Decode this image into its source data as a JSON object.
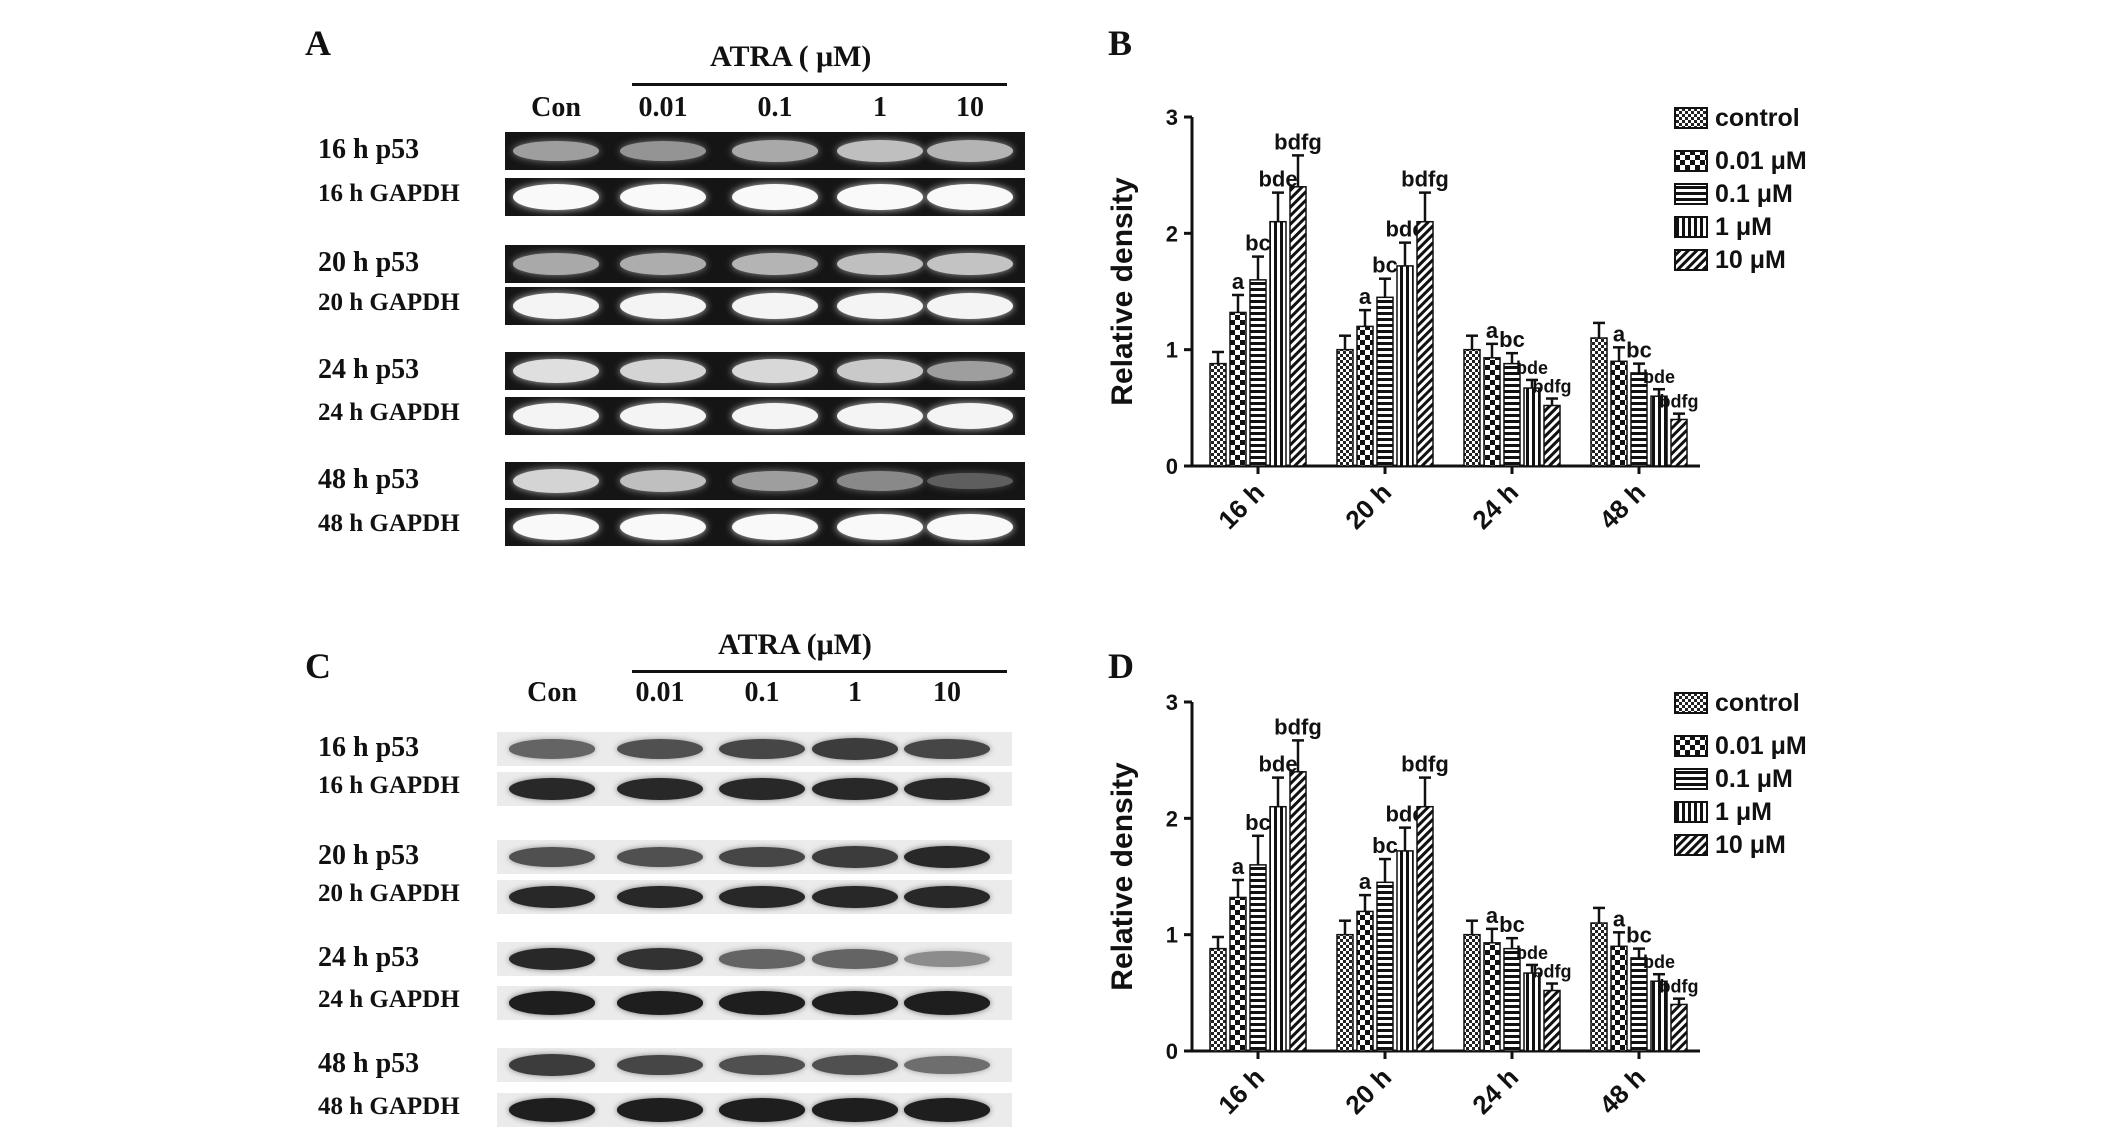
{
  "panels": {
    "A": {
      "letter": "A",
      "header": "ATRA ( μM)",
      "lanes": [
        "Con",
        "0.01",
        "0.1",
        "1",
        "10"
      ],
      "rows": [
        {
          "label": "16 h p53",
          "strip": "dark",
          "intensity": [
            0.55,
            0.5,
            0.6,
            0.7,
            0.65
          ]
        },
        {
          "label": "16 h GAPDH",
          "strip": "dark",
          "intensity": [
            0.97,
            0.97,
            0.97,
            0.97,
            0.97
          ]
        },
        {
          "label": "20 h p53",
          "strip": "dark",
          "intensity": [
            0.6,
            0.62,
            0.65,
            0.7,
            0.72
          ]
        },
        {
          "label": "20 h GAPDH",
          "strip": "dark",
          "intensity": [
            0.95,
            0.95,
            0.95,
            0.95,
            0.95
          ]
        },
        {
          "label": "24 h p53",
          "strip": "dark",
          "intensity": [
            0.85,
            0.8,
            0.82,
            0.75,
            0.55
          ]
        },
        {
          "label": "24 h GAPDH",
          "strip": "dark",
          "intensity": [
            0.95,
            0.95,
            0.95,
            0.95,
            0.95
          ]
        },
        {
          "label": "48 h p53",
          "strip": "dark",
          "intensity": [
            0.8,
            0.7,
            0.55,
            0.45,
            0.25
          ]
        },
        {
          "label": "48 h GAPDH",
          "strip": "dark",
          "intensity": [
            0.97,
            0.97,
            0.97,
            0.97,
            0.97
          ]
        }
      ]
    },
    "C": {
      "letter": "C",
      "header": "ATRA (μM)",
      "lanes": [
        "Con",
        "0.01",
        "0.1",
        "1",
        "10"
      ],
      "rows": [
        {
          "label": "16 h p53",
          "strip": "light",
          "intensity": [
            0.6,
            0.7,
            0.75,
            0.8,
            0.75
          ]
        },
        {
          "label": "16 h GAPDH",
          "strip": "light",
          "intensity": [
            0.9,
            0.9,
            0.9,
            0.9,
            0.9
          ]
        },
        {
          "label": "20 h p53",
          "strip": "light",
          "intensity": [
            0.7,
            0.7,
            0.75,
            0.8,
            0.9
          ]
        },
        {
          "label": "20 h GAPDH",
          "strip": "light",
          "intensity": [
            0.9,
            0.9,
            0.9,
            0.9,
            0.9
          ]
        },
        {
          "label": "24 h p53",
          "strip": "light",
          "intensity": [
            0.9,
            0.85,
            0.6,
            0.6,
            0.4
          ]
        },
        {
          "label": "24 h GAPDH",
          "strip": "light",
          "intensity": [
            0.95,
            0.95,
            0.95,
            0.95,
            0.95
          ]
        },
        {
          "label": "48 h p53",
          "strip": "light",
          "intensity": [
            0.8,
            0.75,
            0.7,
            0.7,
            0.55
          ]
        },
        {
          "label": "48 h GAPDH",
          "strip": "light",
          "intensity": [
            0.95,
            0.95,
            0.95,
            0.95,
            0.95
          ]
        }
      ]
    }
  },
  "chart_data": [
    {
      "panel": "B",
      "type": "bar",
      "ylabel": "Relative density",
      "ylim": [
        0,
        3
      ],
      "yticks": [
        "0",
        "1",
        "2",
        "3"
      ],
      "categories": [
        "16 h",
        "20 h",
        "24 h",
        "48 h"
      ],
      "series": [
        {
          "name": "control",
          "pattern": "checker",
          "values": [
            0.88,
            1.0,
            1.0,
            1.1
          ],
          "errors": [
            0.1,
            0.12,
            0.12,
            0.13
          ]
        },
        {
          "name": "0.01 μM",
          "pattern": "bigchecker",
          "values": [
            1.32,
            1.2,
            0.93,
            0.9
          ],
          "errors": [
            0.15,
            0.14,
            0.12,
            0.12
          ]
        },
        {
          "name": "0.1 μM",
          "pattern": "hstripe",
          "values": [
            1.6,
            1.45,
            0.88,
            0.8
          ],
          "errors": [
            0.2,
            0.16,
            0.09,
            0.08
          ]
        },
        {
          "name": "1 μM",
          "pattern": "vstripe",
          "values": [
            2.1,
            1.72,
            0.67,
            0.6
          ],
          "errors": [
            0.25,
            0.2,
            0.07,
            0.06
          ]
        },
        {
          "name": "10 μM",
          "pattern": "diag",
          "values": [
            2.4,
            2.1,
            0.52,
            0.4
          ],
          "errors": [
            0.27,
            0.25,
            0.06,
            0.05
          ]
        }
      ],
      "bar_labels": [
        [
          "",
          "",
          "",
          ""
        ],
        [
          "a",
          "a",
          "a",
          "a"
        ],
        [
          "bc",
          "bc",
          "bc",
          "bc"
        ],
        [
          "bde",
          "bde",
          "bde",
          "bde"
        ],
        [
          "bdfg",
          "bdfg",
          "bdfg",
          "bdfg"
        ]
      ],
      "legend_position": "top-right"
    },
    {
      "panel": "D",
      "type": "bar",
      "ylabel": "Relative density",
      "ylim": [
        0,
        3
      ],
      "yticks": [
        "0",
        "1",
        "2",
        "3"
      ],
      "categories": [
        "16 h",
        "20 h",
        "24 h",
        "48 h"
      ],
      "series": [
        {
          "name": "control",
          "pattern": "checker",
          "values": [
            0.88,
            1.0,
            1.0,
            1.1
          ],
          "errors": [
            0.1,
            0.12,
            0.12,
            0.13
          ]
        },
        {
          "name": "0.01 μM",
          "pattern": "bigchecker",
          "values": [
            1.32,
            1.2,
            0.93,
            0.9
          ],
          "errors": [
            0.15,
            0.14,
            0.12,
            0.12
          ]
        },
        {
          "name": "0.1 μM",
          "pattern": "hstripe",
          "values": [
            1.6,
            1.45,
            0.88,
            0.8
          ],
          "errors": [
            0.25,
            0.2,
            0.09,
            0.08
          ]
        },
        {
          "name": "1 μM",
          "pattern": "vstripe",
          "values": [
            2.1,
            1.72,
            0.67,
            0.6
          ],
          "errors": [
            0.25,
            0.2,
            0.07,
            0.06
          ]
        },
        {
          "name": "10 μM",
          "pattern": "diag",
          "values": [
            2.4,
            2.1,
            0.52,
            0.4
          ],
          "errors": [
            0.27,
            0.25,
            0.06,
            0.05
          ]
        }
      ],
      "bar_labels": [
        [
          "",
          "",
          "",
          ""
        ],
        [
          "a",
          "a",
          "a",
          "a"
        ],
        [
          "bc",
          "bc",
          "bc",
          "bc"
        ],
        [
          "bde",
          "bde",
          "bde",
          "bde"
        ],
        [
          "bdfg",
          "bdfg",
          "bdfg",
          "bdfg"
        ]
      ],
      "legend_position": "top-right"
    }
  ]
}
